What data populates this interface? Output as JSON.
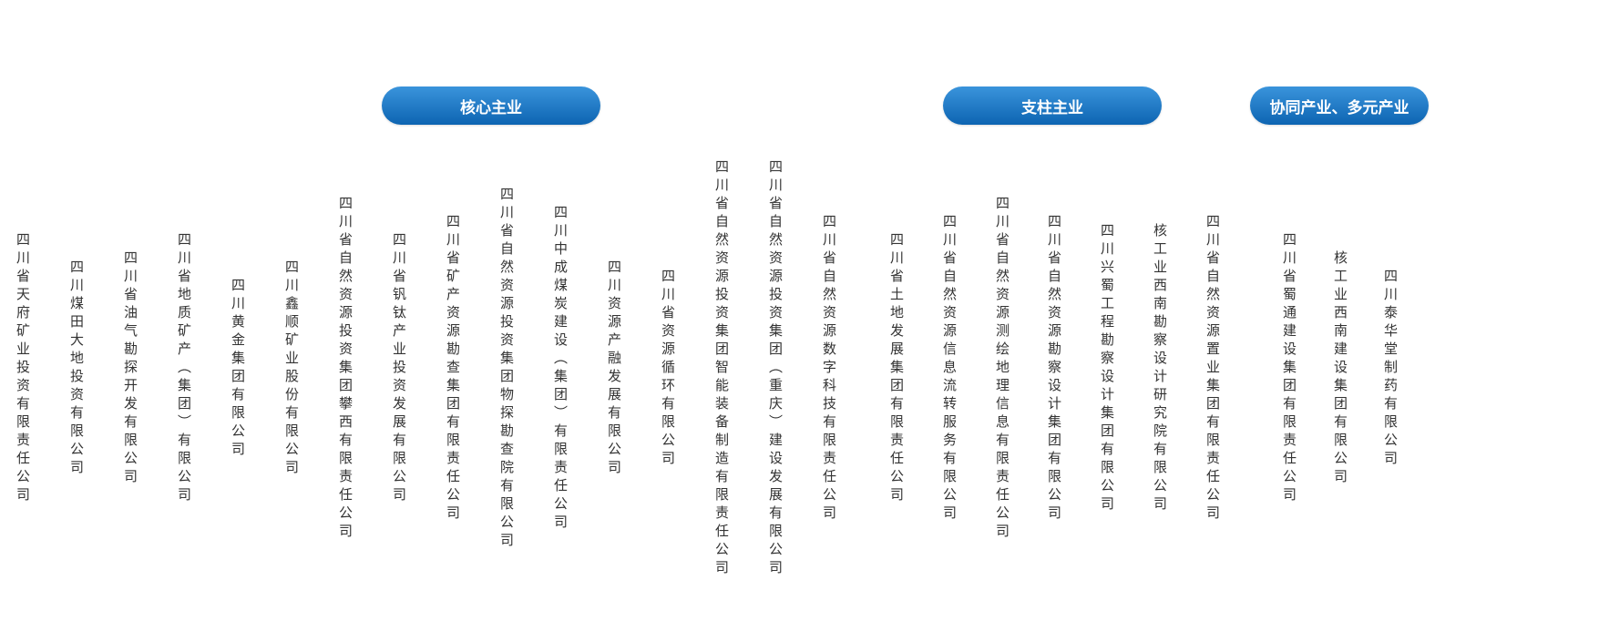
{
  "categories": [
    {
      "label": "核心主业",
      "color": "#1a76c4"
    },
    {
      "label": "支柱主业",
      "color": "#1a76c4"
    },
    {
      "label": "协同产业、多元产业",
      "color": "#1a76c4"
    }
  ],
  "companies": [
    "四川省天府矿业投资有限责任公司",
    "四川煤田大地投资有限公司",
    "四川省油气勘探开发有限公司",
    "四川省地质矿产（集团）有限公司",
    "四川黄金集团有限公司",
    "四川鑫顺矿业股份有限公司",
    "四川省自然资源投资集团攀西有限责任公司",
    "四川省钒钛产业投资发展有限公司",
    "四川省矿产资源勘查集团有限责任公司",
    "四川省自然资源投资集团物探勘查院有限公司",
    "四川中成煤炭建设（集团）有限责任公司",
    "四川资源产融发展有限公司",
    "四川省资源循环有限公司",
    "四川省自然资源投资集团智能装备制造有限责任公司",
    "四川省自然资源投资集团（重庆）建设发展有限公司",
    "四川省自然资源数字科技有限责任公司",
    "四川省土地发展集团有限责任公司",
    "四川省自然资源信息流转服务有限公司",
    "四川省自然资源测绘地理信息有限责任公司",
    "四川省自然资源勘察设计集团有限公司",
    "四川兴蜀工程勘察设计集团有限公司",
    "核工业西南勘察设计研究院有限公司",
    "四川省自然资源置业集团有限责任公司",
    "四川省蜀通建设集团有限责任公司",
    "核工业西南建设集团有限公司",
    "四川泰华堂制药有限公司"
  ]
}
